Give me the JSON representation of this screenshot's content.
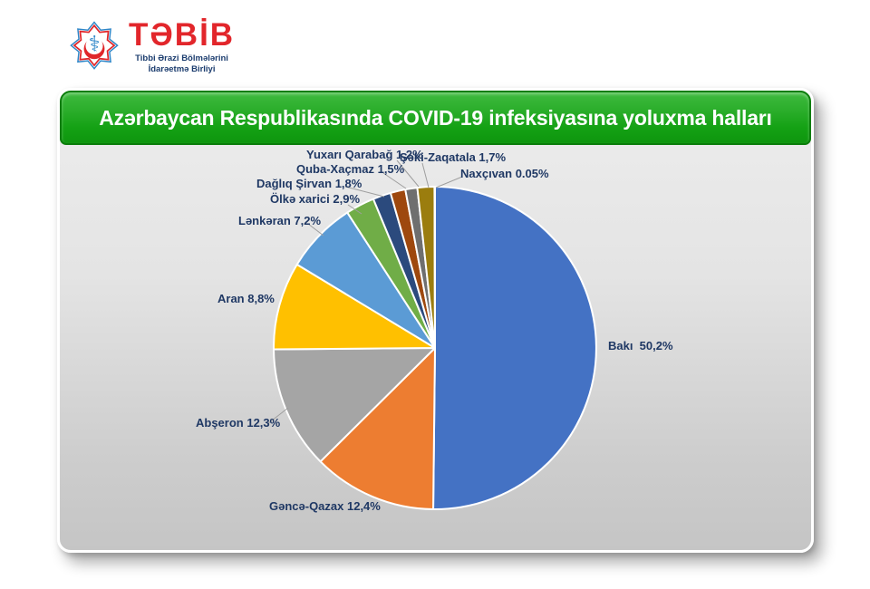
{
  "brand": {
    "name": "TƏBİB",
    "subtitle_line1": "Tibbi Ərazi Bölmələrini",
    "subtitle_line2": "İdarəetmə Birliyi",
    "brand_red": "#E2262B",
    "brand_navy": "#1B3C6E"
  },
  "banner": {
    "green": "#14A114",
    "border_green": "#0A7D0A"
  },
  "chart_data": {
    "type": "pie",
    "title": "Azərbaycan Respublikasında COVID-19 infeksiyasına yoluxma halları",
    "legend_position": "none",
    "label_color": "#1F3864",
    "slice_border_color": "#FFFFFF",
    "start_angle_deg": 0,
    "direction": "clockwise",
    "slices": [
      {
        "name": "Bakı",
        "value": 50.2,
        "label": "Bakı  50,2%",
        "color": "#4472C4"
      },
      {
        "name": "Gəncə-Qazax",
        "value": 12.4,
        "label": "Gəncə-Qazax 12,4%",
        "color": "#ED7D31"
      },
      {
        "name": "Abşeron",
        "value": 12.3,
        "label": "Abşeron 12,3%",
        "color": "#A5A5A5"
      },
      {
        "name": "Aran",
        "value": 8.8,
        "label": "Aran 8,8%",
        "color": "#FFC000"
      },
      {
        "name": "Lənkəran",
        "value": 7.2,
        "label": "Lənkəran 7,2%",
        "color": "#5B9BD5"
      },
      {
        "name": "Ölkə xarici",
        "value": 2.9,
        "label": "Ölkə xarici 2,9%",
        "color": "#70AD47"
      },
      {
        "name": "Dağlıq Şirvan",
        "value": 1.8,
        "label": "Dağlıq Şirvan 1,8%",
        "color": "#2B4A7D"
      },
      {
        "name": "Quba-Xaçmaz",
        "value": 1.5,
        "label": "Quba-Xaçmaz 1,5%",
        "color": "#9E480E"
      },
      {
        "name": "Yuxarı Qarabağ",
        "value": 1.2,
        "label": "Yuxarı Qarabağ 1,2%",
        "color": "#6F6F6F"
      },
      {
        "name": "Şəki-Zaqatala",
        "value": 1.7,
        "label": "Şəki-Zaqatala 1,7%",
        "color": "#9B7D0E"
      },
      {
        "name": "Naxçıvan",
        "value": 0.05,
        "label": "Naxçıvan 0.05%",
        "color": "#255E91"
      }
    ]
  }
}
